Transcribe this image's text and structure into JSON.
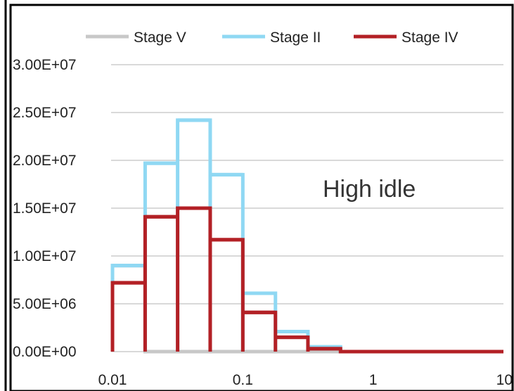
{
  "chart_data": {
    "type": "area",
    "x_scale": "log",
    "xlim": [
      0.01,
      10
    ],
    "ylim": [
      0,
      30000000
    ],
    "grid": true,
    "legend_position": "top",
    "annotation": "High idle",
    "x_ticks": [
      {
        "value": 0.01,
        "label": "0.01"
      },
      {
        "value": 0.1,
        "label": "0.1"
      },
      {
        "value": 1,
        "label": "1"
      },
      {
        "value": 10,
        "label": "10"
      }
    ],
    "y_ticks": [
      {
        "value": 0,
        "label": "0.00E+00"
      },
      {
        "value": 5000000,
        "label": "5.00E+06"
      },
      {
        "value": 10000000,
        "label": "1.00E+07"
      },
      {
        "value": 15000000,
        "label": "1.50E+07"
      },
      {
        "value": 20000000,
        "label": "2.00E+07"
      },
      {
        "value": 25000000,
        "label": "2.50E+07"
      },
      {
        "value": 30000000,
        "label": "3.00E+07"
      }
    ],
    "bin_edges": [
      0.01,
      0.0178,
      0.0316,
      0.0562,
      0.1,
      0.178,
      0.316,
      0.562,
      10
    ],
    "series": [
      {
        "name": "Stage V",
        "color": "#c8c8c8",
        "values": [
          9000000,
          0,
          0,
          0,
          0,
          0,
          0,
          0
        ]
      },
      {
        "name": "Stage II",
        "color": "#8fd8f3",
        "values": [
          9000000,
          19700000,
          24200000,
          18500000,
          6100000,
          2100000,
          500000,
          0
        ]
      },
      {
        "name": "Stage IV",
        "color": "#b32025",
        "values": [
          7200000,
          14100000,
          15000000,
          11700000,
          4100000,
          1500000,
          300000,
          0
        ]
      }
    ]
  }
}
